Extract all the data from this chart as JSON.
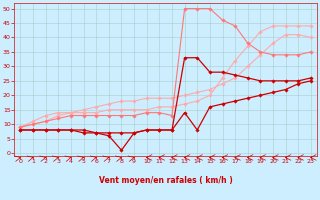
{
  "title": "",
  "xlabel": "Vent moyen/en rafales ( km/h )",
  "background_color": "#cceeff",
  "grid_color": "#aacccc",
  "xlim": [
    -0.5,
    23.5
  ],
  "ylim": [
    -1,
    52
  ],
  "xticks": [
    0,
    1,
    2,
    3,
    4,
    5,
    6,
    7,
    8,
    9,
    10,
    11,
    12,
    13,
    14,
    15,
    16,
    17,
    18,
    19,
    20,
    21,
    22,
    23
  ],
  "yticks": [
    0,
    5,
    10,
    15,
    20,
    25,
    30,
    35,
    40,
    45,
    50
  ],
  "series": [
    {
      "x": [
        0,
        1,
        2,
        3,
        4,
        5,
        6,
        7,
        8,
        9,
        10,
        11,
        12,
        13,
        14,
        15,
        16,
        17,
        18,
        19,
        20,
        21,
        22,
        23
      ],
      "y": [
        9,
        10,
        11,
        13,
        14,
        15,
        16,
        17,
        18,
        18,
        19,
        19,
        19,
        20,
        21,
        22,
        24,
        26,
        30,
        34,
        38,
        41,
        41,
        40
      ],
      "color": "#ffaaaa",
      "marker": "D",
      "markersize": 1.8,
      "linewidth": 0.8
    },
    {
      "x": [
        0,
        1,
        2,
        3,
        4,
        5,
        6,
        7,
        8,
        9,
        10,
        11,
        12,
        13,
        14,
        15,
        16,
        17,
        18,
        19,
        20,
        21,
        22,
        23
      ],
      "y": [
        9,
        11,
        13,
        14,
        14,
        14,
        14,
        15,
        15,
        15,
        15,
        16,
        16,
        17,
        18,
        20,
        26,
        32,
        37,
        42,
        44,
        44,
        44,
        44
      ],
      "color": "#ffaaaa",
      "marker": "D",
      "markersize": 1.8,
      "linewidth": 0.8
    },
    {
      "x": [
        0,
        1,
        2,
        3,
        4,
        5,
        6,
        7,
        8,
        9,
        10,
        11,
        12,
        13,
        14,
        15,
        16,
        17,
        18,
        19,
        20,
        21,
        22,
        23
      ],
      "y": [
        9,
        10,
        11,
        12,
        13,
        13,
        13,
        13,
        13,
        13,
        14,
        14,
        13,
        50,
        50,
        50,
        46,
        44,
        38,
        35,
        34,
        34,
        34,
        35
      ],
      "color": "#ff7777",
      "marker": "D",
      "markersize": 1.8,
      "linewidth": 0.8
    },
    {
      "x": [
        0,
        1,
        2,
        3,
        4,
        5,
        6,
        7,
        8,
        9,
        10,
        11,
        12,
        13,
        14,
        15,
        16,
        17,
        18,
        19,
        20,
        21,
        22,
        23
      ],
      "y": [
        8,
        8,
        8,
        8,
        8,
        7,
        7,
        6,
        1,
        7,
        8,
        8,
        8,
        33,
        33,
        28,
        28,
        27,
        26,
        25,
        25,
        25,
        25,
        26
      ],
      "color": "#cc0000",
      "marker": "D",
      "markersize": 1.8,
      "linewidth": 0.9
    },
    {
      "x": [
        0,
        1,
        2,
        3,
        4,
        5,
        6,
        7,
        8,
        9,
        10,
        11,
        12,
        13,
        14,
        15,
        16,
        17,
        18,
        19,
        20,
        21,
        22,
        23
      ],
      "y": [
        8,
        8,
        8,
        8,
        8,
        8,
        7,
        7,
        7,
        7,
        8,
        8,
        8,
        14,
        8,
        16,
        17,
        18,
        19,
        20,
        21,
        22,
        24,
        25
      ],
      "color": "#cc0000",
      "marker": "D",
      "markersize": 1.8,
      "linewidth": 0.9
    }
  ],
  "arrow_angles": [
    45,
    45,
    45,
    45,
    45,
    45,
    45,
    45,
    45,
    45,
    180,
    180,
    180,
    180,
    180,
    180,
    180,
    180,
    180,
    180,
    180,
    180,
    180,
    180
  ]
}
